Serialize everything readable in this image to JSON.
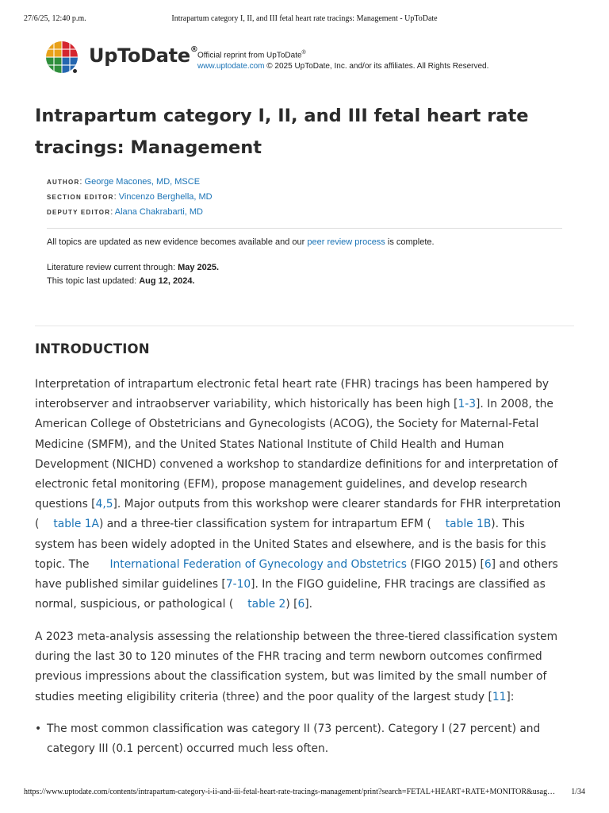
{
  "print_header": {
    "date": "27/6/25, 12:40 p.m.",
    "title": "Intrapartum category I, II, and III fetal heart rate tracings: Management - UpToDate"
  },
  "brand": {
    "name": "UpToDate",
    "registered": "®",
    "icon": "uptodate-logo-icon",
    "colors": [
      "#e8a11a",
      "#d4262f",
      "#2f8f3c",
      "#2466b0"
    ]
  },
  "reprint": {
    "line1": "Official reprint from UpToDate",
    "line1_mark": "®",
    "url": "www.uptodate.com",
    "copyright": " © 2025 UpToDate, Inc. and/or its affiliates. All Rights Reserved."
  },
  "title_lines": [
    "Intrapartum category I, II, and III fetal heart rate",
    "tracings: Management"
  ],
  "byline": {
    "author_label": "Author",
    "author": "George Macones, MD, MSCE",
    "section_editor_label": "Section Editor",
    "section_editor": "Vincenzo Berghella, MD",
    "deputy_editor_label": "Deputy Editor",
    "deputy_editor": "Alana Chakrabarti, MD"
  },
  "meta": {
    "update_prefix": "All topics are updated as new evidence becomes available and our ",
    "peer_review_link": "peer review process",
    "update_suffix": " is complete.",
    "lit_review_label": "Literature review current through: ",
    "lit_review_value": "May 2025.",
    "last_updated_label": "This topic last updated: ",
    "last_updated_value": "Aug 12, 2024."
  },
  "section": {
    "heading": "INTRODUCTION",
    "p1": {
      "l1": "Interpretation of intrapartum electronic fetal heart rate (FHR) tracings has been hampered by",
      "l2a": "interobserver and intraobserver variability, which historically has been high [",
      "ref_1_3": "1-3",
      "l2b": "]. In 2008, the",
      "l3": "American College of Obstetricians and Gynecologists (ACOG), the Society for Maternal-Fetal",
      "l4": "Medicine (SMFM), and the United States National Institute of Child Health and Human",
      "l5": "Development (NICHD) convened a workshop to standardize definitions for and interpretation of",
      "l6": "electronic fetal monitoring (EFM), propose management guidelines, and develop research",
      "l7a": "questions [",
      "ref_4_5": "4,5",
      "l7b": "]. Major outputs from this workshop were clearer standards for FHR interpretation",
      "l8a": "(",
      "table_1a": "table 1A",
      "l8b": ") and a three-tier classification system for intrapartum EFM (",
      "table_1b": "table 1B",
      "l8c": "). This",
      "l9": "system has been widely adopted in the United States and elsewhere, and is the basis for this",
      "l10a": "topic. The",
      "figo_link": "International Federation of Gynecology and Obstetrics",
      "l10b": " (FIGO 2015) [",
      "ref_6": "6",
      "l10c": "] and others",
      "l11a": "have published similar guidelines [",
      "ref_7_10": "7-10",
      "l11b": "]. In the FIGO guideline, FHR tracings are classified as",
      "l12a": "normal, suspicious, or pathological (",
      "table_2": "table 2",
      "l12b": ") [",
      "ref_6b": "6",
      "l12c": "]."
    },
    "p2": {
      "l1": "A 2023 meta-analysis assessing the relationship between the three-tiered classification system",
      "l2": "during the last 30 to 120 minutes of the FHR tracing and term newborn outcomes confirmed",
      "l3": "previous impressions about the classification system, but was limited by the small number of",
      "l4a": "studies meeting eligibility criteria (three) and the poor quality of the largest study [",
      "ref_11": "11",
      "l4b": "]:"
    },
    "bullet1": {
      "l1": "The most common classification was category II (73 percent). Category I (27 percent) and",
      "l2": "category III (0.1 percent) occurred much less often."
    }
  },
  "print_footer": {
    "url": "https://www.uptodate.com/contents/intrapartum-category-i-ii-and-iii-fetal-heart-rate-tracings-management/print?search=FETAL+HEART+RATE+MONITOR&usag…",
    "page": "1/34"
  }
}
